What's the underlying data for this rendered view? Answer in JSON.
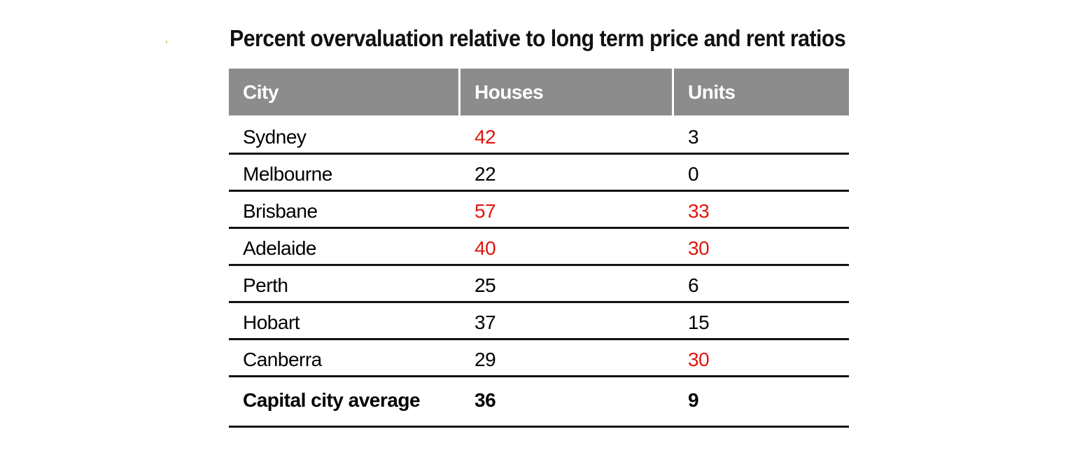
{
  "title": "Percent overvaluation relative to long term price and rent ratios",
  "table": {
    "columns": [
      "City",
      "Houses",
      "Units"
    ],
    "rows": [
      {
        "city": "Sydney",
        "houses": "42",
        "units": "3",
        "houses_highlight": true,
        "units_highlight": false
      },
      {
        "city": "Melbourne",
        "houses": "22",
        "units": "0",
        "houses_highlight": false,
        "units_highlight": false
      },
      {
        "city": "Brisbane",
        "houses": "57",
        "units": "33",
        "houses_highlight": true,
        "units_highlight": true
      },
      {
        "city": "Adelaide",
        "houses": "40",
        "units": "30",
        "houses_highlight": true,
        "units_highlight": true
      },
      {
        "city": "Perth",
        "houses": "25",
        "units": "6",
        "houses_highlight": false,
        "units_highlight": false
      },
      {
        "city": "Hobart",
        "houses": "37",
        "units": "15",
        "houses_highlight": false,
        "units_highlight": false
      },
      {
        "city": "Canberra",
        "houses": "29",
        "units": "30",
        "houses_highlight": false,
        "units_highlight": true
      }
    ],
    "summary": {
      "city": "Capital city average",
      "houses": "36",
      "units": "9"
    }
  },
  "colors": {
    "header_bg": "#8c8c8c",
    "header_text": "#ffffff",
    "highlight": "#e0140f",
    "rule": "#111111"
  }
}
